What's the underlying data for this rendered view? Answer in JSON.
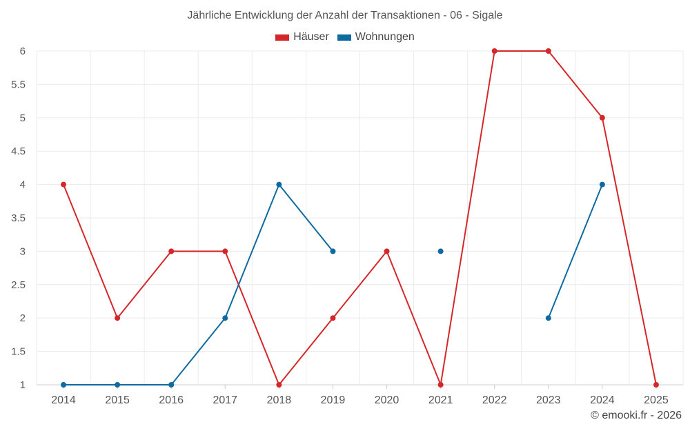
{
  "chart_data": {
    "type": "line",
    "title": "Jährliche Entwicklung der Anzahl der Transaktionen - 06 - Sigale",
    "categories": [
      "2014",
      "2015",
      "2016",
      "2017",
      "2018",
      "2019",
      "2020",
      "2021",
      "2022",
      "2023",
      "2024",
      "2025"
    ],
    "series": [
      {
        "name": "Häuser",
        "color": "#d62728",
        "values": [
          4,
          2,
          3,
          3,
          1,
          2,
          3,
          1,
          6,
          6,
          5,
          1
        ]
      },
      {
        "name": "Wohnungen",
        "color": "#0e6aa0",
        "values": [
          1,
          1,
          1,
          2,
          4,
          3,
          null,
          3,
          null,
          2,
          4,
          null
        ]
      }
    ],
    "yticks": [
      "1",
      "1.5",
      "2",
      "2.5",
      "3",
      "3.5",
      "4",
      "4.5",
      "5",
      "5.5",
      "6"
    ],
    "ylim": [
      1,
      6
    ],
    "grid": true,
    "legend": "top-center"
  },
  "footer": {
    "credit": "© emooki.fr - 2026"
  }
}
